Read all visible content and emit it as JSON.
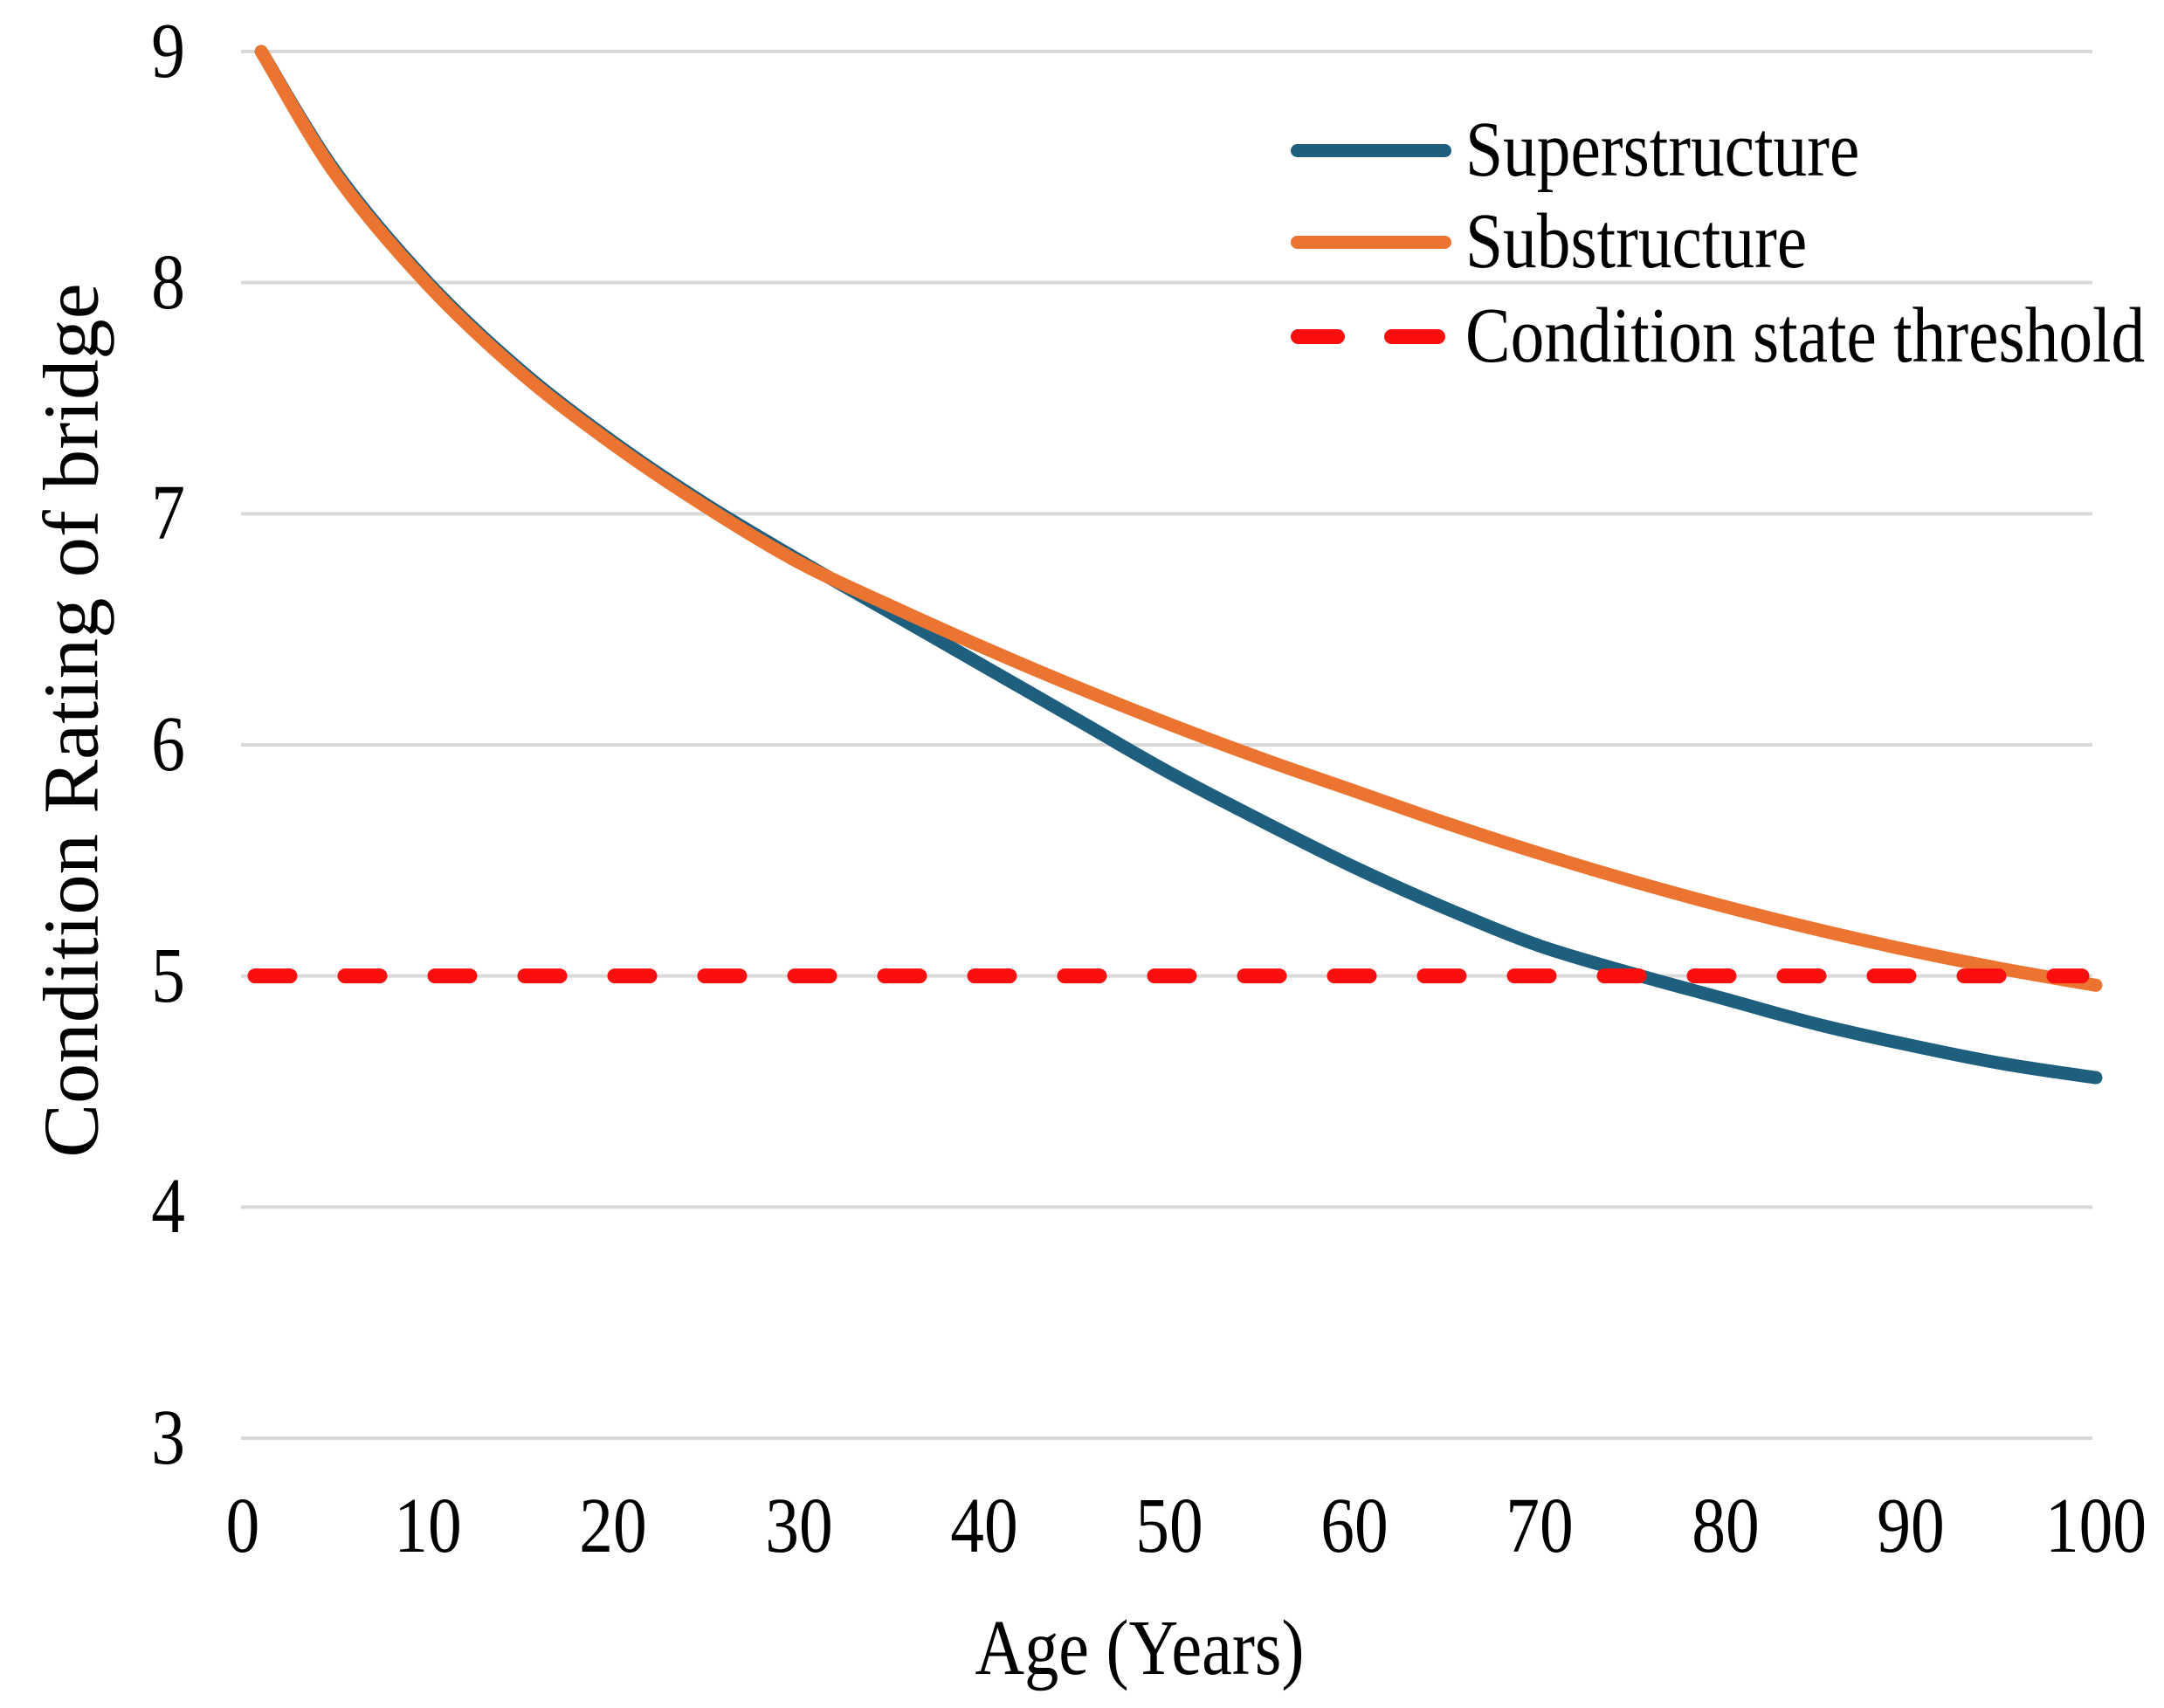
{
  "chart_data": {
    "type": "line",
    "title": "",
    "xlabel": "Age (Years)",
    "ylabel": "Condition Rating of bridge",
    "xlim": [
      0,
      100
    ],
    "ylim": [
      3,
      9
    ],
    "x_ticks": [
      "0",
      "10",
      "20",
      "30",
      "40",
      "50",
      "60",
      "70",
      "80",
      "90",
      "100"
    ],
    "y_ticks": [
      "9",
      "8",
      "7",
      "6",
      "5",
      "4",
      "3"
    ],
    "grid": "horizontal-only",
    "gridline_color": "#d9d9d9",
    "text_color": "#000000",
    "background_color": "#ffffff",
    "legend_position": "top-right",
    "x": [
      1,
      5,
      10,
      15,
      20,
      25,
      30,
      35,
      40,
      45,
      50,
      55,
      60,
      65,
      70,
      75,
      80,
      85,
      90,
      95,
      100
    ],
    "series": [
      {
        "name": "Superstructure",
        "color": "#1e5f7e",
        "values": [
          9.0,
          8.48,
          8.0,
          7.62,
          7.31,
          7.04,
          6.8,
          6.57,
          6.34,
          6.11,
          5.88,
          5.67,
          5.47,
          5.29,
          5.13,
          5.01,
          4.9,
          4.79,
          4.7,
          4.62,
          4.56
        ]
      },
      {
        "name": "Substructure",
        "color": "#ec7431",
        "values": [
          9.0,
          8.47,
          7.99,
          7.61,
          7.3,
          7.03,
          6.79,
          6.6,
          6.42,
          6.25,
          6.09,
          5.94,
          5.8,
          5.66,
          5.53,
          5.41,
          5.3,
          5.2,
          5.11,
          5.03,
          4.96
        ]
      }
    ],
    "threshold": {
      "label": "Condition state threshold",
      "value": 5,
      "color": "#fb0e0e",
      "style": "dashed"
    }
  }
}
